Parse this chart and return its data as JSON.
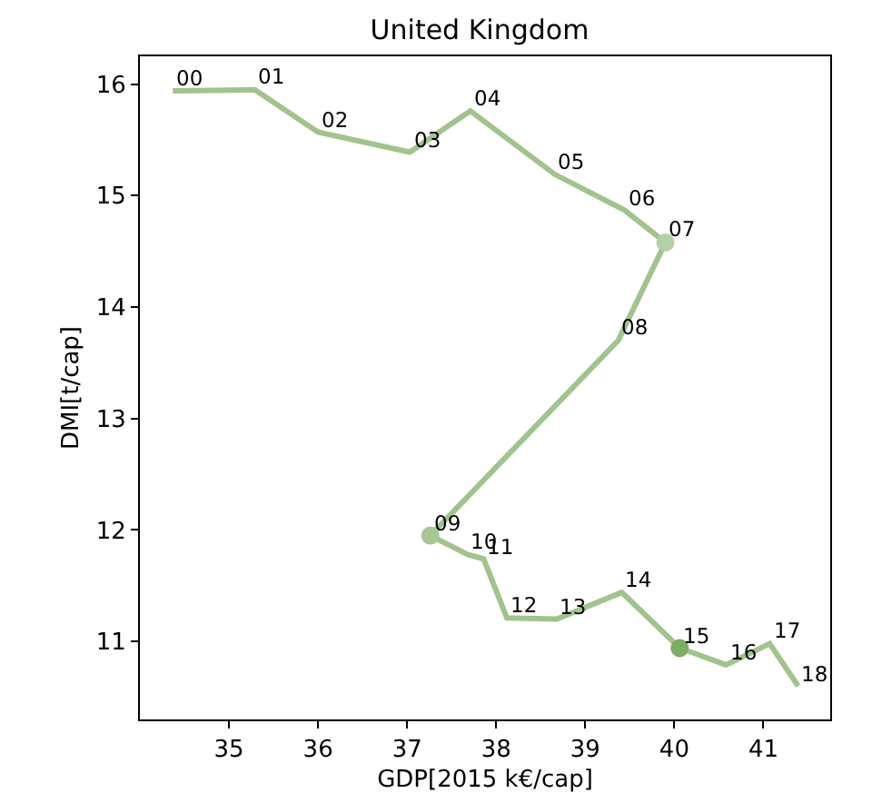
{
  "chart_data": {
    "type": "line",
    "title": "United Kingdom",
    "xlabel": "GDP[2015 k€/cap]",
    "ylabel": "DMI[t/cap]",
    "x": [
      34.37,
      35.29,
      36.0,
      37.03,
      37.71,
      38.66,
      39.44,
      39.9,
      39.37,
      37.26,
      37.68,
      37.86,
      38.12,
      38.68,
      39.41,
      40.06,
      40.58,
      41.07,
      41.39
    ],
    "series": [
      {
        "values": [
          15.94,
          15.95,
          15.57,
          15.39,
          15.76,
          15.19,
          14.87,
          14.58,
          13.7,
          11.95,
          11.78,
          11.74,
          11.21,
          11.2,
          11.44,
          10.94,
          10.79,
          10.98,
          10.6
        ],
        "color": "#a1c38e"
      },
      {
        "type": "scatter",
        "x": [
          39.9,
          37.26,
          40.06
        ],
        "values": [
          14.58,
          11.95,
          10.94
        ],
        "colors": [
          "#b5d0a7",
          "#a7c796",
          "#7fac65"
        ],
        "marker": "circle"
      }
    ],
    "annotations": [
      {
        "text": "00",
        "x": 34.37,
        "y": 15.94
      },
      {
        "text": "01",
        "x": 35.29,
        "y": 15.95
      },
      {
        "text": "02",
        "x": 36.0,
        "y": 15.57
      },
      {
        "text": "03",
        "x": 37.03,
        "y": 15.39
      },
      {
        "text": "04",
        "x": 37.71,
        "y": 15.76
      },
      {
        "text": "05",
        "x": 38.66,
        "y": 15.19
      },
      {
        "text": "06",
        "x": 39.44,
        "y": 14.87
      },
      {
        "text": "07",
        "x": 39.9,
        "y": 14.58
      },
      {
        "text": "08",
        "x": 39.37,
        "y": 13.7
      },
      {
        "text": "09",
        "x": 37.26,
        "y": 11.95
      },
      {
        "text": "10",
        "x": 37.68,
        "y": 11.78
      },
      {
        "text": "11",
        "x": 37.86,
        "y": 11.74
      },
      {
        "text": "12",
        "x": 38.12,
        "y": 11.21
      },
      {
        "text": "13",
        "x": 38.68,
        "y": 11.2
      },
      {
        "text": "14",
        "x": 39.41,
        "y": 11.44
      },
      {
        "text": "15",
        "x": 40.06,
        "y": 10.94
      },
      {
        "text": "16",
        "x": 40.58,
        "y": 10.79
      },
      {
        "text": "17",
        "x": 41.07,
        "y": 10.98
      },
      {
        "text": "18",
        "x": 41.39,
        "y": 10.6
      }
    ],
    "xlim": [
      34.0,
      41.75
    ],
    "xticks": [
      35,
      36,
      37,
      38,
      39,
      40,
      41
    ],
    "ylim": [
      10.3,
      16.25
    ],
    "yticks": [
      11,
      12,
      13,
      14,
      15,
      16
    ],
    "grid": false,
    "marker": "none",
    "line_style": "solid"
  }
}
